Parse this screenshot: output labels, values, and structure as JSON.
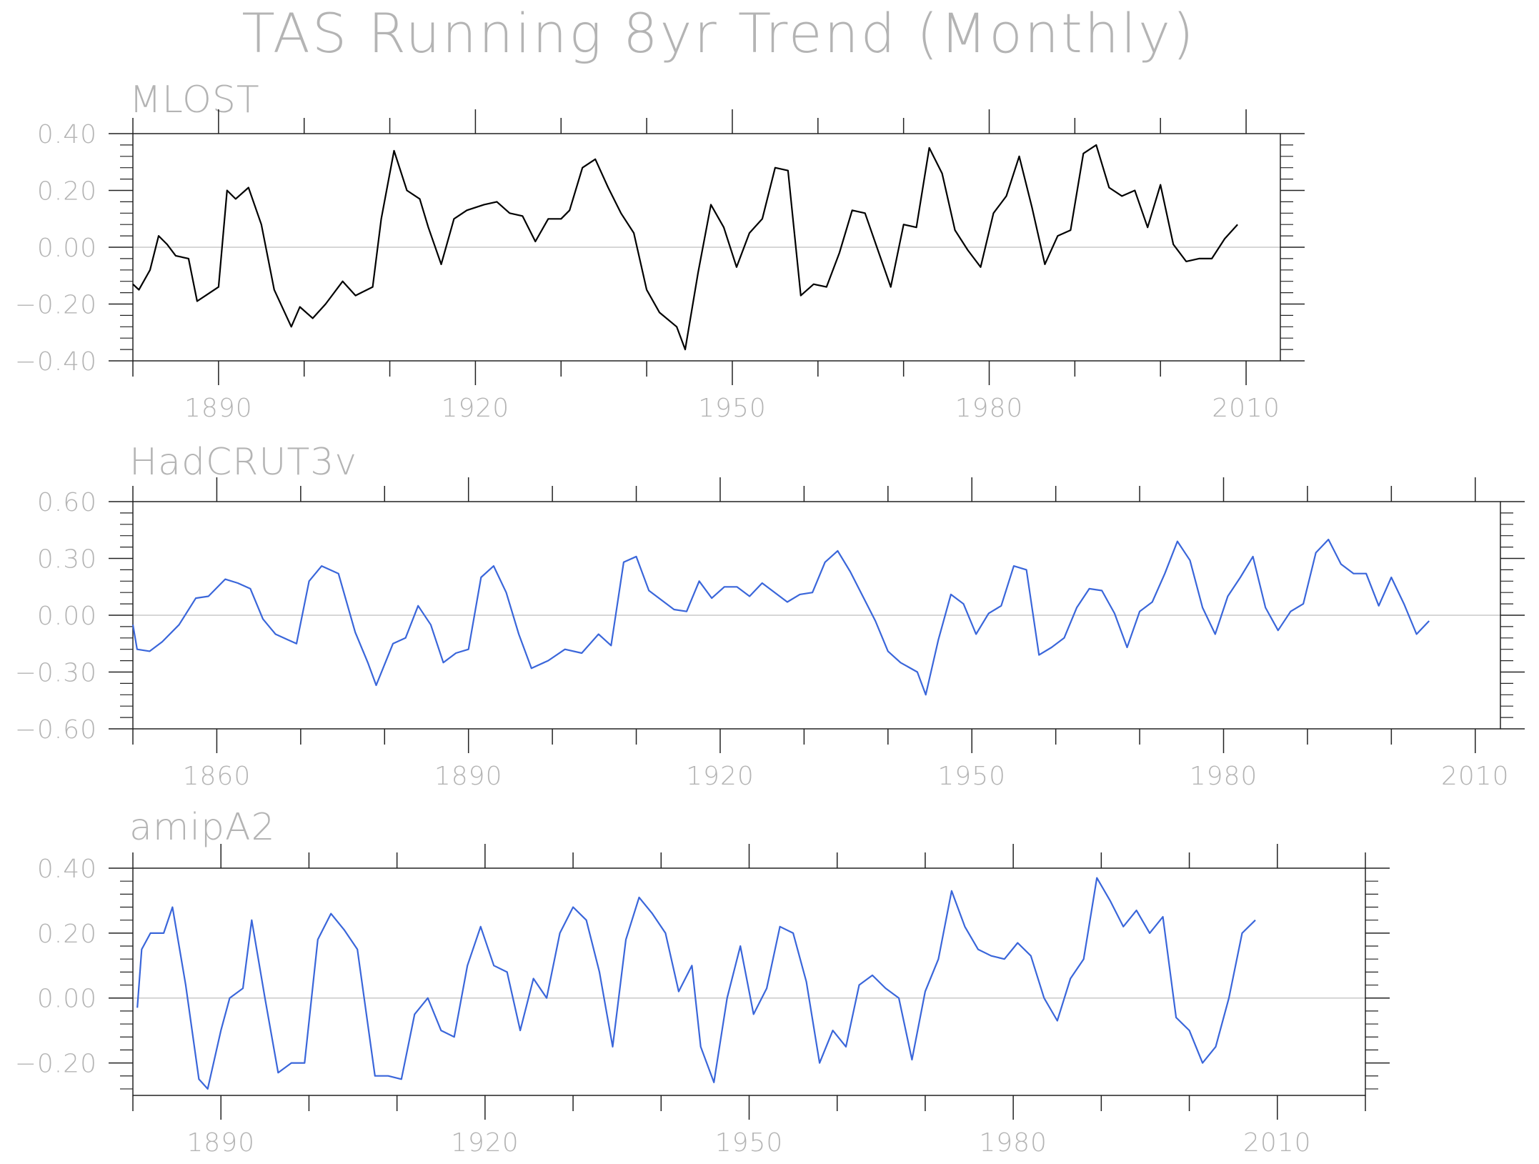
{
  "figure": {
    "title": "TAS Running 8yr Trend (Monthly)"
  },
  "chart_data": [
    {
      "type": "line",
      "title": "MLOST",
      "color": "#000000",
      "x_range": [
        1880,
        2014
      ],
      "ylim": [
        -0.4,
        0.4
      ],
      "y_ticks": [
        0.4,
        0.2,
        0.0,
        -0.2,
        -0.4
      ],
      "y_tick_labels": [
        "0.40",
        "0.20",
        "0.00",
        "−0.20",
        "−0.40"
      ],
      "x_ticks": [
        1890,
        1920,
        1950,
        1980,
        2010
      ],
      "x_tick_labels": [
        "1890",
        "1920",
        "1950",
        "1980",
        "2010"
      ],
      "zero_line": true,
      "series": [
        {
          "x": [
            1880.0,
            1880.7,
            1882.0,
            1883.0,
            1884.0,
            1885.0,
            1886.5,
            1887.5,
            1888.5,
            1890.0,
            1891.0,
            1892.0,
            1893.5,
            1895.0,
            1896.5,
            1898.5,
            1899.5,
            1901.0,
            1902.5,
            1904.5,
            1906.0,
            1908.0,
            1909.0,
            1910.5,
            1912.0,
            1913.5,
            1914.5,
            1916.0,
            1917.5,
            1919.0,
            1921.0,
            1922.5,
            1924.0,
            1925.5,
            1927.0,
            1928.5,
            1930.0,
            1931.0,
            1932.5,
            1934.0,
            1935.5,
            1937.0,
            1938.5,
            1940.0,
            1941.5,
            1943.5,
            1944.5,
            1946.0,
            1947.5,
            1949.0,
            1950.5,
            1952.0,
            1953.5,
            1955.0,
            1956.5,
            1958.0,
            1959.5,
            1961.0,
            1962.5,
            1964.0,
            1965.5,
            1967.0,
            1968.5,
            1970.0,
            1971.5,
            1973.0,
            1974.5,
            1976.0,
            1977.5,
            1979.0,
            1980.5,
            1982.0,
            1983.5,
            1985.0,
            1986.5,
            1988.0,
            1989.5,
            1991.0,
            1992.5,
            1994.0,
            1995.5,
            1997.0,
            1998.5,
            2000.0,
            2001.5,
            2003.0,
            2004.5,
            2006.0,
            2007.5,
            2009.0
          ],
          "y": [
            -0.13,
            -0.15,
            -0.08,
            0.04,
            0.01,
            -0.03,
            -0.04,
            -0.19,
            -0.17,
            -0.14,
            0.2,
            0.17,
            0.21,
            0.08,
            -0.15,
            -0.28,
            -0.21,
            -0.25,
            -0.2,
            -0.12,
            -0.17,
            -0.14,
            0.1,
            0.34,
            0.2,
            0.17,
            0.07,
            -0.06,
            0.1,
            0.13,
            0.15,
            0.16,
            0.12,
            0.11,
            0.02,
            0.1,
            0.1,
            0.13,
            0.28,
            0.31,
            0.21,
            0.12,
            0.05,
            -0.15,
            -0.23,
            -0.28,
            -0.36,
            -0.09,
            0.15,
            0.07,
            -0.07,
            0.05,
            0.1,
            0.28,
            0.27,
            -0.17,
            -0.13,
            -0.14,
            -0.02,
            0.13,
            0.12,
            -0.01,
            -0.14,
            0.08,
            0.07,
            0.35,
            0.26,
            0.06,
            -0.01,
            -0.07,
            0.12,
            0.18,
            0.32,
            0.14,
            -0.06,
            0.04,
            0.06,
            0.33,
            0.36,
            0.21,
            0.18,
            0.2,
            0.07,
            0.22,
            0.01,
            -0.05,
            -0.04,
            -0.04,
            0.03,
            0.08
          ]
        }
      ]
    },
    {
      "type": "line",
      "title": "HadCRUT3v",
      "color": "#3a66da",
      "x_range": [
        1850,
        2013
      ],
      "ylim": [
        -0.6,
        0.6
      ],
      "y_ticks": [
        0.6,
        0.3,
        0.0,
        -0.3,
        -0.6
      ],
      "y_tick_labels": [
        "0.60",
        "0.30",
        "0.00",
        "−0.30",
        "−0.60"
      ],
      "x_ticks": [
        1860,
        1890,
        1920,
        1950,
        1980,
        2010
      ],
      "x_tick_labels": [
        "1860",
        "1890",
        "1920",
        "1950",
        "1980",
        "2010"
      ],
      "zero_line": true,
      "series": [
        {
          "x": [
            1850.0,
            1850.5,
            1852.0,
            1853.5,
            1855.5,
            1857.5,
            1859.0,
            1861.0,
            1862.5,
            1864.0,
            1865.5,
            1867.0,
            1868.5,
            1869.5,
            1871.0,
            1872.5,
            1874.5,
            1876.5,
            1878.0,
            1879.0,
            1881.0,
            1882.5,
            1884.0,
            1885.5,
            1887.0,
            1888.5,
            1890.0,
            1891.5,
            1893.0,
            1894.5,
            1896.0,
            1897.5,
            1899.5,
            1901.5,
            1903.5,
            1905.5,
            1907.0,
            1908.5,
            1910.0,
            1911.5,
            1913.0,
            1914.5,
            1916.0,
            1917.5,
            1919.0,
            1920.5,
            1922.0,
            1923.5,
            1925.0,
            1926.5,
            1928.0,
            1929.5,
            1931.0,
            1932.5,
            1934.0,
            1935.5,
            1937.0,
            1938.5,
            1940.0,
            1941.5,
            1943.5,
            1944.5,
            1946.0,
            1947.5,
            1949.0,
            1950.5,
            1952.0,
            1953.5,
            1955.0,
            1956.5,
            1958.0,
            1959.5,
            1961.0,
            1962.5,
            1964.0,
            1965.5,
            1967.0,
            1968.5,
            1970.0,
            1971.5,
            1973.0,
            1974.5,
            1976.0,
            1977.5,
            1979.0,
            1980.5,
            1982.0,
            1983.5,
            1985.0,
            1986.5,
            1988.0,
            1989.5,
            1991.0,
            1992.5,
            1994.0,
            1995.5,
            1997.0,
            1998.5,
            2000.0,
            2001.5,
            2003.0,
            2004.5
          ],
          "y": [
            -0.05,
            -0.18,
            -0.19,
            -0.14,
            -0.05,
            0.09,
            0.1,
            0.19,
            0.17,
            0.14,
            -0.02,
            -0.1,
            -0.13,
            -0.15,
            0.18,
            0.26,
            0.22,
            -0.09,
            -0.25,
            -0.37,
            -0.15,
            -0.12,
            0.05,
            -0.05,
            -0.25,
            -0.2,
            -0.18,
            0.2,
            0.26,
            0.12,
            -0.1,
            -0.28,
            -0.24,
            -0.18,
            -0.2,
            -0.1,
            -0.16,
            0.28,
            0.31,
            0.13,
            0.08,
            0.03,
            0.02,
            0.18,
            0.09,
            0.15,
            0.15,
            0.1,
            0.17,
            0.12,
            0.07,
            0.11,
            0.12,
            0.28,
            0.34,
            0.23,
            0.1,
            -0.03,
            -0.19,
            -0.25,
            -0.3,
            -0.42,
            -0.13,
            0.11,
            0.06,
            -0.1,
            0.01,
            0.05,
            0.26,
            0.24,
            -0.21,
            -0.17,
            -0.12,
            0.04,
            0.14,
            0.13,
            0.01,
            -0.17,
            0.02,
            0.07,
            0.22,
            0.39,
            0.29,
            0.04,
            -0.1,
            0.1,
            0.2,
            0.31,
            0.04,
            -0.08,
            0.02,
            0.06,
            0.33,
            0.4,
            0.27,
            0.22,
            0.22,
            0.05,
            0.2,
            0.06,
            -0.1,
            -0.03
          ]
        }
      ]
    },
    {
      "type": "line",
      "title": "amipA2",
      "color": "#3a66da",
      "x_range": [
        1880,
        2020
      ],
      "ylim": [
        -0.3,
        0.4
      ],
      "y_ticks": [
        0.4,
        0.2,
        0.0,
        -0.2
      ],
      "y_tick_labels": [
        "0.40",
        "0.20",
        "0.00",
        "−0.20"
      ],
      "x_ticks": [
        1890,
        1920,
        1950,
        1980,
        2010
      ],
      "x_tick_labels": [
        "1890",
        "1920",
        "1950",
        "1980",
        "2010"
      ],
      "zero_line": true,
      "series": [
        {
          "x": [
            1880.5,
            1881.0,
            1882.0,
            1883.5,
            1884.5,
            1886.0,
            1887.5,
            1888.5,
            1890.0,
            1891.0,
            1892.5,
            1893.5,
            1895.0,
            1896.5,
            1898.0,
            1899.5,
            1901.0,
            1902.5,
            1904.0,
            1905.5,
            1907.5,
            1909.0,
            1910.5,
            1912.0,
            1913.5,
            1915.0,
            1916.5,
            1918.0,
            1919.5,
            1921.0,
            1922.5,
            1924.0,
            1925.5,
            1927.0,
            1928.5,
            1930.0,
            1931.5,
            1933.0,
            1934.5,
            1936.0,
            1937.5,
            1939.0,
            1940.5,
            1942.0,
            1943.5,
            1944.5,
            1946.0,
            1947.5,
            1949.0,
            1950.5,
            1952.0,
            1953.5,
            1955.0,
            1956.5,
            1958.0,
            1959.5,
            1961.0,
            1962.5,
            1964.0,
            1965.5,
            1967.0,
            1968.5,
            1970.0,
            1971.5,
            1973.0,
            1974.5,
            1976.0,
            1977.5,
            1979.0,
            1980.5,
            1982.0,
            1983.5,
            1985.0,
            1986.5,
            1988.0,
            1989.5,
            1991.0,
            1992.5,
            1994.0,
            1995.5,
            1997.0,
            1998.5,
            2000.0,
            2001.5,
            2003.0,
            2004.5,
            2006.0,
            2007.5
          ],
          "y": [
            -0.03,
            0.15,
            0.2,
            0.2,
            0.28,
            0.04,
            -0.25,
            -0.28,
            -0.1,
            0.0,
            0.03,
            0.24,
            0.0,
            -0.23,
            -0.2,
            -0.2,
            0.18,
            0.26,
            0.21,
            0.15,
            -0.24,
            -0.24,
            -0.25,
            -0.05,
            0.0,
            -0.1,
            -0.12,
            0.1,
            0.22,
            0.1,
            0.08,
            -0.1,
            0.06,
            0.0,
            0.2,
            0.28,
            0.24,
            0.08,
            -0.15,
            0.18,
            0.31,
            0.26,
            0.2,
            0.02,
            0.1,
            -0.15,
            -0.26,
            0.0,
            0.16,
            -0.05,
            0.03,
            0.22,
            0.2,
            0.05,
            -0.2,
            -0.1,
            -0.15,
            0.04,
            0.07,
            0.03,
            0.0,
            -0.19,
            0.02,
            0.12,
            0.33,
            0.22,
            0.15,
            0.13,
            0.12,
            0.17,
            0.13,
            0.0,
            -0.07,
            0.06,
            0.12,
            0.37,
            0.3,
            0.22,
            0.27,
            0.2,
            0.25,
            -0.06,
            -0.1,
            -0.2,
            -0.15,
            0.0,
            0.2,
            0.24
          ]
        }
      ]
    }
  ]
}
